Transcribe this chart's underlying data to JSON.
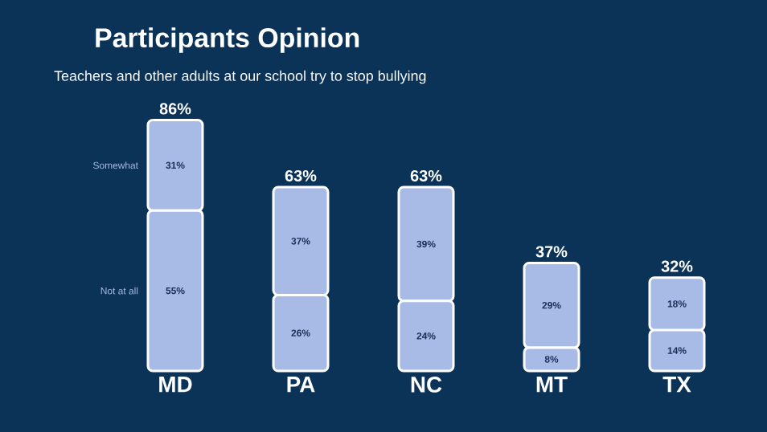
{
  "chart_data": {
    "type": "bar",
    "stacked": true,
    "title": "Participants Opinion",
    "subtitle": "Teachers and other adults at our school try to stop bullying",
    "categories": [
      "MD",
      "PA",
      "NC",
      "MT",
      "TX"
    ],
    "series": [
      {
        "name": "Not at all",
        "color": "#a8bbe6",
        "values": [
          55,
          26,
          24,
          8,
          14
        ],
        "value_labels": [
          "55%",
          "26%",
          "24%",
          "8%",
          "14%"
        ]
      },
      {
        "name": "Somewhat",
        "color": "#a8bbe6",
        "values": [
          31,
          37,
          39,
          29,
          18
        ],
        "value_labels": [
          "31%",
          "37%",
          "39%",
          "29%",
          "18%"
        ]
      }
    ],
    "totals": [
      "86%",
      "63%",
      "63%",
      "37%",
      "32%"
    ],
    "legend": false,
    "tick_labels": "x"
  }
}
